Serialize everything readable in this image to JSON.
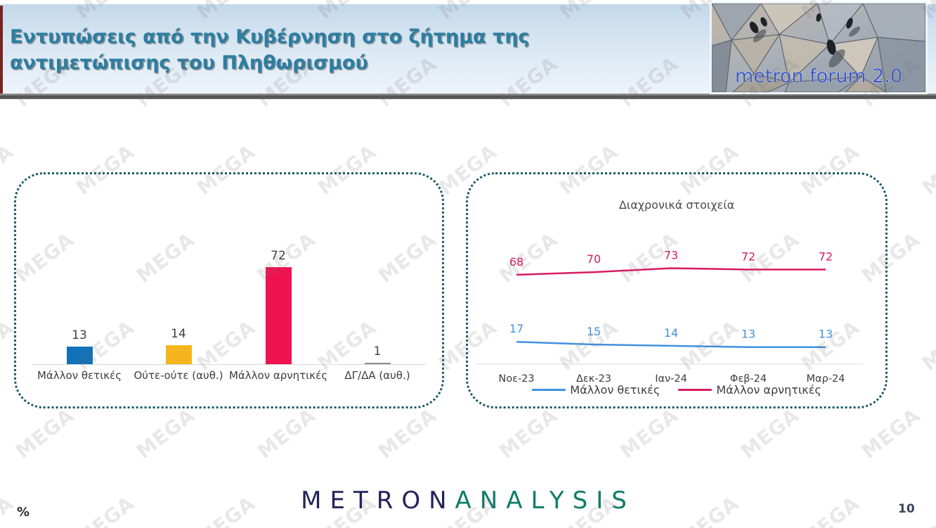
{
  "header": {
    "title": "Εντυπώσεις από την Κυβέρνηση στο ζήτημα της αντιμετώπισης του Πληθωρισμού",
    "logo_text": "metron forum 2.0"
  },
  "watermark": {
    "text": "MEGA"
  },
  "footer": {
    "brand_part1": "METRON",
    "brand_part2": "ANALYSIS",
    "percent_label": "%",
    "page_number": "10"
  },
  "colors": {
    "title": "#2c7ea1",
    "accent_stripe": "#7a2421",
    "panel_border": "#1a5b68",
    "axis": "#d9d9d9",
    "label_dark": "#404040",
    "bar_blue": "#1072ba",
    "bar_yellow": "#f6b51c",
    "bar_pink": "#ef1350",
    "bar_gray": "#8c8c8c",
    "line_blue": "#4191e0",
    "line_pink": "#d91a60",
    "brand_navy": "#23235a",
    "brand_teal": "#0e7c68",
    "logo_text_blue": "#3a57c0"
  },
  "chart_data": [
    {
      "type": "bar",
      "title": "",
      "categories": [
        "Μάλλον θετικές",
        "Ούτε-ούτε (αυθ.)",
        "Μάλλον αρνητικές",
        "ΔΓ/ΔΑ (αυθ.)"
      ],
      "values": [
        13,
        14,
        72,
        1
      ],
      "bar_colors": [
        "#1072ba",
        "#f6b51c",
        "#ef1350",
        "#8c8c8c"
      ],
      "xlabel": "",
      "ylabel": "%",
      "data_labels": true,
      "grid": false
    },
    {
      "type": "line",
      "title": "Διαχρονικά στοιχεία",
      "x": [
        "Νοε-23",
        "Δεκ-23",
        "Ιαν-24",
        "Φεβ-24",
        "Μαρ-24"
      ],
      "series": [
        {
          "name": "Μάλλον θετικές",
          "color": "#4191e0",
          "values": [
            17,
            15,
            14,
            13,
            13
          ]
        },
        {
          "name": "Μάλλον αρνητικές",
          "color": "#d91a60",
          "values": [
            68,
            70,
            73,
            72,
            72
          ]
        }
      ],
      "ylim": [
        0,
        100
      ],
      "data_labels": true,
      "grid": false,
      "legend_position": "bottom"
    }
  ]
}
